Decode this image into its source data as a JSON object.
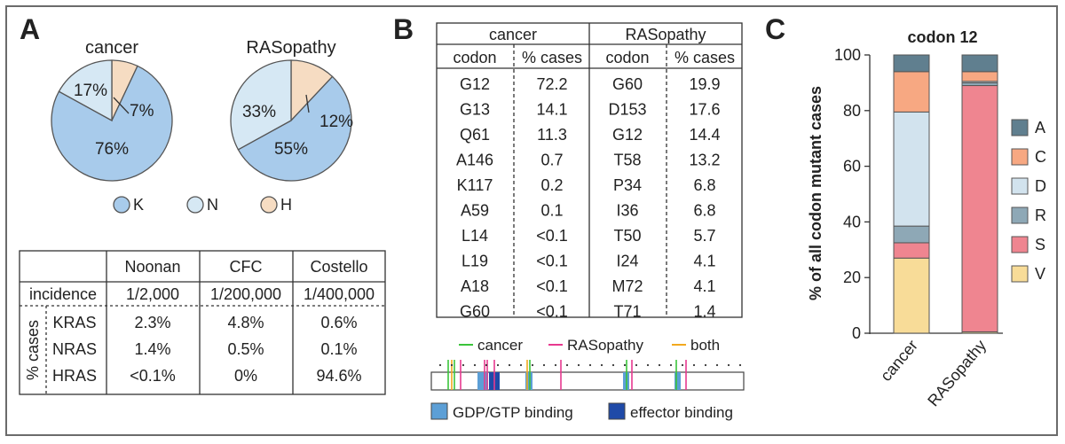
{
  "panels": {
    "a": "A",
    "b": "B",
    "c": "C"
  },
  "colors": {
    "K": "#a8cbeb",
    "N": "#d6e8f4",
    "H": "#f6dcc2",
    "pie_stroke": "#555555",
    "cancer": "#3ac43a",
    "rasopathy": "#e8398f",
    "both": "#f2a91e",
    "gdp": "#5c9fd6",
    "effector": "#1f4aa8",
    "A": "#607f8f",
    "C": "#f7a882",
    "D": "#d2e3ee",
    "R": "#8ea8b6",
    "S": "#ef8590",
    "V": "#f8dc98"
  },
  "pies": [
    {
      "title": "cancer",
      "slices": [
        {
          "key": "K",
          "value": 76,
          "label": "76%"
        },
        {
          "key": "N",
          "value": 17,
          "label": "17%"
        },
        {
          "key": "H",
          "value": 7,
          "label": "7%"
        }
      ]
    },
    {
      "title": "RASopathy",
      "slices": [
        {
          "key": "K",
          "value": 55,
          "label": "55%"
        },
        {
          "key": "N",
          "value": 33,
          "label": "33%"
        },
        {
          "key": "H",
          "value": 12,
          "label": "12%"
        }
      ]
    }
  ],
  "pie_legend": [
    {
      "key": "K",
      "label": "K"
    },
    {
      "key": "N",
      "label": "N"
    },
    {
      "key": "H",
      "label": "H"
    }
  ],
  "incidence_table": {
    "headers": [
      "",
      "Noonan",
      "CFC",
      "Costello"
    ],
    "incidence_label": "incidence",
    "incidence": [
      "1/2,000",
      "1/200,000",
      "1/400,000"
    ],
    "group_label": "% cases",
    "rows": [
      {
        "gene": "KRAS",
        "values": [
          "2.3%",
          "4.8%",
          "0.6%"
        ]
      },
      {
        "gene": "NRAS",
        "values": [
          "1.4%",
          "0.5%",
          "0.1%"
        ]
      },
      {
        "gene": "HRAS",
        "values": [
          "<0.1%",
          "0%",
          "94.6%"
        ]
      }
    ]
  },
  "codon_table": {
    "groups": [
      "cancer",
      "RASopathy"
    ],
    "subheaders": [
      "codon",
      "% cases",
      "codon",
      "% cases"
    ],
    "rows": [
      [
        "G12",
        "72.2",
        "G60",
        "19.9"
      ],
      [
        "G13",
        "14.1",
        "D153",
        "17.6"
      ],
      [
        "Q61",
        "11.3",
        "G12",
        "14.4"
      ],
      [
        "A146",
        "0.7",
        "T58",
        "13.2"
      ],
      [
        "K117",
        "0.2",
        "P34",
        "6.8"
      ],
      [
        "A59",
        "0.1",
        "I36",
        "6.8"
      ],
      [
        "L14",
        "<0.1",
        "T50",
        "5.7"
      ],
      [
        "L19",
        "<0.1",
        "I24",
        "4.1"
      ],
      [
        "A18",
        "<0.1",
        "M72",
        "4.1"
      ],
      [
        "G60",
        "<0.1",
        "T71",
        "1.4"
      ]
    ]
  },
  "sequence_legend": {
    "cancer": "cancer",
    "rasopathy": "RASopathy",
    "both": "both",
    "gdp": "GDP/GTP binding",
    "effector": "effector binding"
  },
  "chart_data": {
    "type": "bar",
    "stacked": true,
    "title": "codon 12",
    "xlabel": "",
    "ylabel": "% of all codon mutant cases",
    "ylim": [
      0,
      100
    ],
    "yticks": [
      0,
      20,
      40,
      60,
      80,
      100
    ],
    "categories": [
      "cancer",
      "RASopathy"
    ],
    "series": [
      {
        "name": "V",
        "values": [
          27,
          0.5
        ]
      },
      {
        "name": "S",
        "values": [
          5.5,
          88.5
        ]
      },
      {
        "name": "R",
        "values": [
          6,
          1
        ]
      },
      {
        "name": "D",
        "values": [
          41,
          0.5
        ]
      },
      {
        "name": "C",
        "values": [
          14.5,
          3.5
        ]
      },
      {
        "name": "A",
        "values": [
          6,
          6
        ]
      }
    ],
    "legend": [
      "A",
      "C",
      "D",
      "R",
      "S",
      "V"
    ],
    "legend_position": "right"
  }
}
